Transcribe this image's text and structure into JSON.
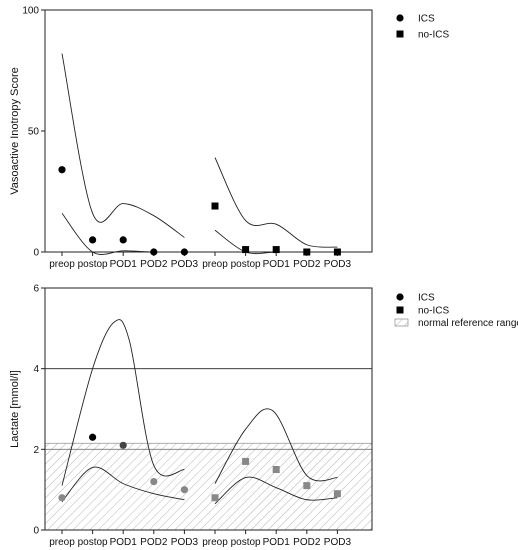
{
  "chart_data": [
    {
      "type": "scatter",
      "ylabel": "Vasoactive Inotropy Score",
      "ylim": [
        0,
        100
      ],
      "yticks": [
        0,
        50,
        100
      ],
      "categories": [
        "preop",
        "postop",
        "POD1",
        "POD2",
        "POD3",
        "preop",
        "postop",
        "POD1",
        "POD2",
        "POD3"
      ],
      "legend": [
        "ICS",
        "no-ICS"
      ],
      "legend_position": "top-right",
      "series": [
        {
          "name": "ICS",
          "marker": "circle",
          "color": "#000000",
          "x": [
            0,
            1,
            2,
            3,
            4
          ],
          "values": [
            34,
            5,
            5,
            0,
            0
          ],
          "band_upper": [
            [
              0,
              82
            ],
            [
              1,
              16
            ],
            [
              2,
              20
            ],
            [
              3,
              15
            ],
            [
              4,
              6
            ]
          ],
          "band_lower": [
            [
              0,
              16
            ],
            [
              1,
              0
            ],
            [
              2,
              0.5
            ],
            [
              3,
              0
            ],
            [
              4,
              0
            ]
          ]
        },
        {
          "name": "no-ICS",
          "marker": "square",
          "color": "#000000",
          "x": [
            5,
            6,
            7,
            8,
            9
          ],
          "values": [
            19,
            1,
            1,
            0,
            0
          ],
          "band_upper": [
            [
              5,
              39
            ],
            [
              6,
              13
            ],
            [
              7,
              11.5
            ],
            [
              8,
              3
            ],
            [
              9,
              2
            ]
          ],
          "band_lower": [
            [
              5,
              9
            ],
            [
              6,
              0
            ],
            [
              7,
              0
            ],
            [
              8,
              0
            ],
            [
              9,
              0
            ]
          ]
        }
      ]
    },
    {
      "type": "scatter",
      "ylabel": "Lactate [mmol/l]",
      "ylim": [
        0,
        6
      ],
      "yticks": [
        0,
        2,
        4,
        6
      ],
      "reference_line": 4,
      "reference_range": [
        0,
        2.15
      ],
      "categories": [
        "preop",
        "postop",
        "POD1",
        "POD2",
        "POD3",
        "preop",
        "postop",
        "POD1",
        "POD2",
        "POD3"
      ],
      "legend": [
        "ICS",
        "no-ICS",
        "normal reference range"
      ],
      "legend_position": "top-right",
      "series": [
        {
          "name": "ICS",
          "marker": "circle",
          "x": [
            0,
            1,
            2,
            3,
            4
          ],
          "values": [
            0.8,
            2.3,
            2.1,
            1.2,
            1.0
          ],
          "colors": [
            "#888888",
            "#000000",
            "#444444",
            "#888888",
            "#888888"
          ],
          "band_upper": [
            [
              0,
              1.1
            ],
            [
              1,
              4.0
            ],
            [
              1.7,
              5.15
            ],
            [
              2.2,
              4.7
            ],
            [
              3,
              1.6
            ],
            [
              4,
              1.5
            ]
          ],
          "band_lower": [
            [
              0,
              0.7
            ],
            [
              1,
              1.55
            ],
            [
              2,
              1.15
            ],
            [
              3,
              0.9
            ],
            [
              4,
              0.75
            ]
          ]
        },
        {
          "name": "no-ICS",
          "marker": "square",
          "x": [
            5,
            6,
            7,
            8,
            9
          ],
          "values": [
            0.8,
            1.7,
            1.5,
            1.1,
            0.9
          ],
          "colors": [
            "#888888",
            "#888888",
            "#888888",
            "#888888",
            "#888888"
          ],
          "band_upper": [
            [
              5,
              1.15
            ],
            [
              6,
              2.5
            ],
            [
              6.9,
              2.95
            ],
            [
              8,
              1.35
            ],
            [
              9,
              1.3
            ]
          ],
          "band_lower": [
            [
              5,
              0.65
            ],
            [
              6,
              1.3
            ],
            [
              7,
              1.05
            ],
            [
              8,
              0.75
            ],
            [
              9,
              0.8
            ]
          ]
        }
      ]
    }
  ]
}
